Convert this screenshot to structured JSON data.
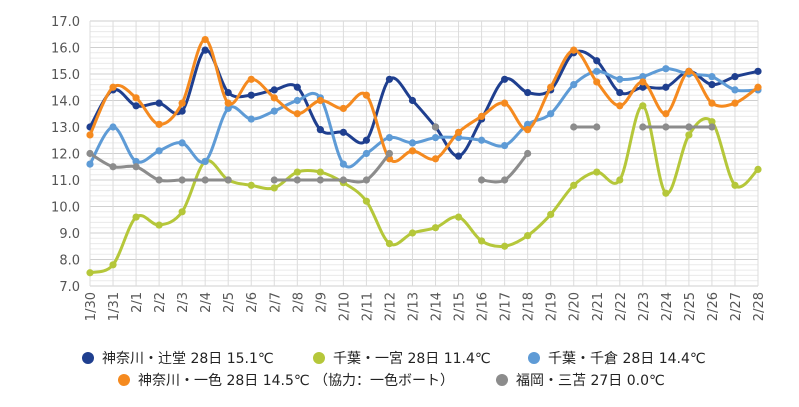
{
  "chart_data": {
    "type": "line",
    "categories": [
      "1/30",
      "1/31",
      "2/1",
      "2/2",
      "2/3",
      "2/4",
      "2/5",
      "2/6",
      "2/7",
      "2/8",
      "2/9",
      "2/10",
      "2/11",
      "2/12",
      "2/13",
      "2/14",
      "2/15",
      "2/16",
      "2/17",
      "2/18",
      "2/19",
      "2/20",
      "2/21",
      "2/22",
      "2/23",
      "2/24",
      "2/25",
      "2/26",
      "2/27",
      "2/28"
    ],
    "ylim": [
      7.0,
      17.0
    ],
    "yticks": [
      "7.0",
      "8.0",
      "9.0",
      "10.0",
      "11.0",
      "12.0",
      "13.0",
      "14.0",
      "15.0",
      "16.0",
      "17.0"
    ],
    "grid": true,
    "legend_position": "bottom",
    "series": [
      {
        "name": "神奈川・辻堂 28日 15.1℃",
        "color": "#1f3f8f",
        "values": [
          13.0,
          14.4,
          13.8,
          13.9,
          13.6,
          15.9,
          14.3,
          14.2,
          14.4,
          14.5,
          12.9,
          12.8,
          12.5,
          14.8,
          14.0,
          13.0,
          11.9,
          13.3,
          14.8,
          14.3,
          14.4,
          15.8,
          15.5,
          14.3,
          14.5,
          14.5,
          15.1,
          14.6,
          14.9,
          15.1
        ]
      },
      {
        "name": "千葉・一宮 28日 11.4℃",
        "color": "#b5c73a",
        "values": [
          7.5,
          7.8,
          9.6,
          9.3,
          9.8,
          11.7,
          11.0,
          10.8,
          10.7,
          11.3,
          11.3,
          10.9,
          10.2,
          8.6,
          9.0,
          9.2,
          9.6,
          8.7,
          8.5,
          8.9,
          9.7,
          10.8,
          11.3,
          11.0,
          13.8,
          10.5,
          12.7,
          13.2,
          10.8,
          11.4
        ]
      },
      {
        "name": "千葉・千倉 28日 14.4℃",
        "color": "#5e9bd6",
        "values": [
          11.6,
          13.0,
          11.7,
          12.1,
          12.4,
          11.7,
          13.7,
          13.3,
          13.6,
          14.0,
          14.1,
          11.6,
          12.0,
          12.6,
          12.4,
          12.6,
          12.6,
          12.5,
          12.3,
          13.1,
          13.5,
          14.6,
          15.1,
          14.8,
          14.9,
          15.2,
          15.0,
          14.9,
          14.4,
          14.4
        ]
      },
      {
        "name": "神奈川・一色 28日 14.5℃ （協力：一色ボート）",
        "color": "#f58a1f",
        "values": [
          12.7,
          14.5,
          14.1,
          13.1,
          13.9,
          16.3,
          13.9,
          14.8,
          14.1,
          13.5,
          14.0,
          13.7,
          14.2,
          11.8,
          12.1,
          11.8,
          12.8,
          13.4,
          13.9,
          12.9,
          14.5,
          15.9,
          14.7,
          13.8,
          14.7,
          13.5,
          15.1,
          13.9,
          13.9,
          14.5
        ]
      },
      {
        "name": "福岡・三苫 27日 0.0℃",
        "color": "#8c8c8c",
        "values": [
          12.0,
          11.5,
          11.5,
          11.0,
          11.0,
          11.0,
          11.0,
          null,
          11.0,
          11.0,
          11.0,
          11.0,
          11.0,
          12.0,
          null,
          13.0,
          null,
          11.0,
          11.0,
          12.0,
          null,
          13.0,
          13.0,
          null,
          13.0,
          13.0,
          13.0,
          13.0,
          null,
          null
        ]
      }
    ]
  }
}
